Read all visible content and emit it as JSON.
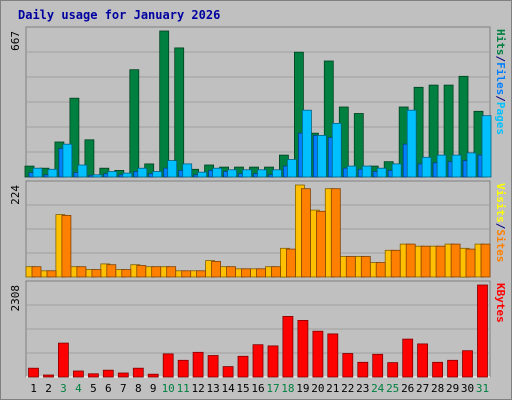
{
  "chart_data": {
    "type": "bar",
    "title": "Daily usage for January 2026",
    "categories": [
      "1",
      "2",
      "3",
      "4",
      "5",
      "6",
      "7",
      "8",
      "9",
      "10",
      "11",
      "12",
      "13",
      "14",
      "15",
      "16",
      "17",
      "18",
      "19",
      "20",
      "21",
      "22",
      "23",
      "24",
      "25",
      "26",
      "27",
      "28",
      "29",
      "30",
      "31"
    ],
    "weekend_days": [
      "3",
      "4",
      "10",
      "11",
      "17",
      "18",
      "24",
      "25",
      "31"
    ],
    "panels": [
      {
        "id": "top",
        "ymax_label": "667",
        "ylim": [
          0,
          667
        ],
        "right_labels": [
          {
            "text": "Hits",
            "color": "#008040"
          },
          {
            "text": "/",
            "color": "#000080"
          },
          {
            "text": "Files",
            "color": "#0080ff"
          },
          {
            "text": "/",
            "color": "#000080"
          },
          {
            "text": "Pages",
            "color": "#00c0ff"
          }
        ],
        "series": [
          {
            "name": "Hits",
            "color": "#008040",
            "values": [
              50,
              40,
              160,
              360,
              170,
              40,
              30,
              490,
              60,
              667,
              590,
              35,
              55,
              45,
              45,
              45,
              45,
              100,
              570,
              200,
              530,
              320,
              290,
              50,
              70,
              320,
              410,
              420,
              420,
              460,
              300
            ]
          },
          {
            "name": "Files",
            "color": "#0080ff",
            "values": [
              20,
              10,
              130,
              20,
              8,
              15,
              10,
              25,
              15,
              40,
              30,
              10,
              30,
              25,
              15,
              15,
              10,
              50,
              200,
              190,
              180,
              40,
              35,
              25,
              30,
              150,
              60,
              65,
              70,
              75,
              100
            ]
          },
          {
            "name": "Pages",
            "color": "#00c0ff",
            "values": [
              40,
              35,
              150,
              55,
              10,
              25,
              18,
              40,
              25,
              75,
              60,
              22,
              40,
              33,
              33,
              33,
              33,
              80,
              305,
              190,
              245,
              50,
              50,
              40,
              60,
              305,
              90,
              100,
              100,
              110,
              280
            ]
          }
        ]
      },
      {
        "id": "middle",
        "ymax_label": "224",
        "ylim": [
          0,
          224
        ],
        "right_labels": [
          {
            "text": "Visits",
            "color": "#ffff00"
          },
          {
            "text": "/",
            "color": "#000080"
          },
          {
            "text": "Sites",
            "color": "#ff8000"
          }
        ],
        "series": [
          {
            "name": "Visits",
            "color": "#ffc000",
            "values": [
              25,
              15,
              152,
              25,
              18,
              32,
              18,
              30,
              25,
              25,
              15,
              15,
              40,
              25,
              20,
              20,
              25,
              70,
              224,
              163,
              215,
              50,
              50,
              35,
              65,
              80,
              75,
              75,
              80,
              70,
              80
            ]
          },
          {
            "name": "Sites",
            "color": "#ff8000",
            "values": [
              25,
              15,
              150,
              25,
              18,
              30,
              18,
              28,
              25,
              25,
              15,
              15,
              38,
              25,
              20,
              20,
              25,
              68,
              215,
              160,
              215,
              50,
              50,
              35,
              65,
              80,
              75,
              75,
              80,
              68,
              80
            ]
          }
        ]
      },
      {
        "id": "bottom",
        "ymax_label": "2308",
        "ylim": [
          0,
          2308
        ],
        "right_labels": [
          {
            "text": "KBytes",
            "color": "#ff0000"
          }
        ],
        "series": [
          {
            "name": "KBytes",
            "color": "#ff0000",
            "values": [
              220,
              50,
              850,
              150,
              80,
              170,
              100,
              220,
              70,
              580,
              420,
              620,
              540,
              260,
              520,
              810,
              780,
              1520,
              1420,
              1150,
              1080,
              590,
              370,
              570,
              360,
              950,
              830,
              370,
              420,
              660,
              2308
            ]
          }
        ]
      }
    ]
  }
}
